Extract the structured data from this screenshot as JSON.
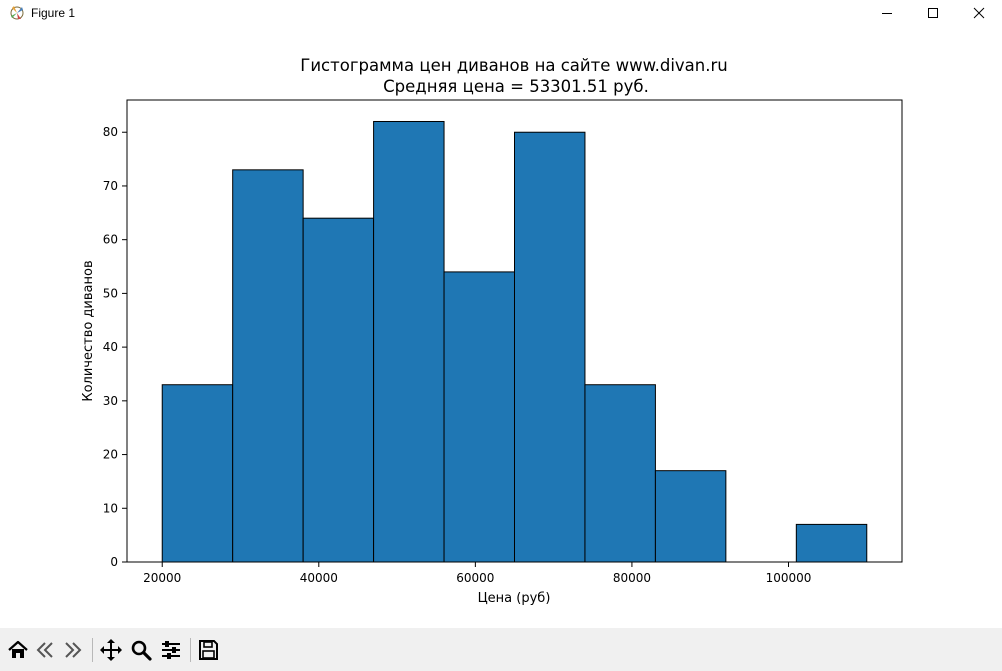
{
  "window": {
    "title": "Figure 1",
    "icons": [
      "matplotlib-app-icon",
      "minimize-icon",
      "maximize-icon",
      "close-icon"
    ]
  },
  "toolbar": {
    "icons": [
      "home-icon",
      "back-icon",
      "forward-icon",
      "pan-icon",
      "zoom-icon",
      "configure-subplots-icon",
      "save-icon"
    ]
  },
  "chart_data": {
    "type": "bar",
    "title": "Гистограмма цен диванов на сайте www.divan.ru",
    "subtitle": "Средняя цена = 53301.51 руб.",
    "xlabel": "Цена (руб)",
    "ylabel": "Количество диванов",
    "bin_edges": [
      20000,
      29000,
      38000,
      47000,
      56000,
      65000,
      74000,
      83000,
      92000,
      101000,
      110000
    ],
    "values": [
      33,
      73,
      64,
      82,
      54,
      80,
      33,
      17,
      0,
      7
    ],
    "xlim": [
      15500,
      114500
    ],
    "ylim": [
      0,
      86
    ],
    "xticks": [
      20000,
      40000,
      60000,
      80000,
      100000
    ],
    "yticks": [
      0,
      10,
      20,
      30,
      40,
      50,
      60,
      70,
      80
    ],
    "grid": false,
    "bar_color": "#1f77b4",
    "edge_color": "#000000"
  }
}
